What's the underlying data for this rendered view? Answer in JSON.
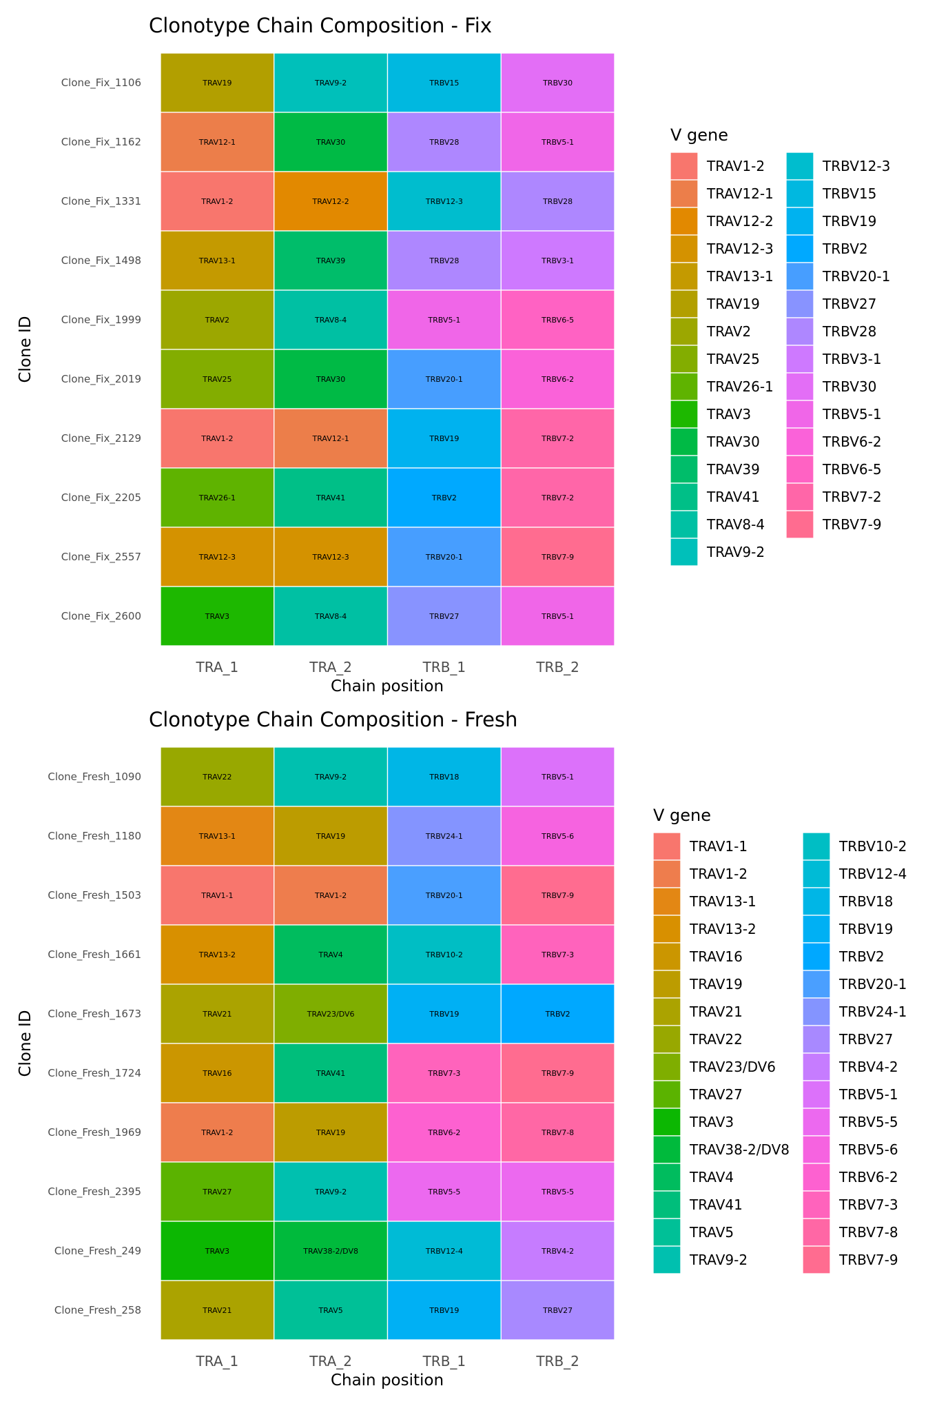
{
  "chart_data": [
    {
      "type": "heatmap",
      "title": "Clonotype Chain Composition - Fix",
      "xlabel": "Chain position",
      "ylabel": "Clone ID",
      "x": [
        "TRA_1",
        "TRA_2",
        "TRB_1",
        "TRB_2"
      ],
      "y": [
        "Clone_Fix_1106",
        "Clone_Fix_1162",
        "Clone_Fix_1331",
        "Clone_Fix_1498",
        "Clone_Fix_1999",
        "Clone_Fix_2019",
        "Clone_Fix_2129",
        "Clone_Fix_2205",
        "Clone_Fix_2557",
        "Clone_Fix_2600"
      ],
      "values": [
        [
          "TRAV19",
          "TRAV9-2",
          "TRBV15",
          "TRBV30"
        ],
        [
          "TRAV12-1",
          "TRAV30",
          "TRBV28",
          "TRBV5-1"
        ],
        [
          "TRAV1-2",
          "TRAV12-2",
          "TRBV12-3",
          "TRBV28"
        ],
        [
          "TRAV13-1",
          "TRAV39",
          "TRBV28",
          "TRBV3-1"
        ],
        [
          "TRAV2",
          "TRAV8-4",
          "TRBV5-1",
          "TRBV6-5"
        ],
        [
          "TRAV25",
          "TRAV30",
          "TRBV20-1",
          "TRBV6-2"
        ],
        [
          "TRAV1-2",
          "TRAV12-1",
          "TRBV19",
          "TRBV7-2"
        ],
        [
          "TRAV26-1",
          "TRAV41",
          "TRBV2",
          "TRBV7-2"
        ],
        [
          "TRAV12-3",
          "TRAV12-3",
          "TRBV20-1",
          "TRBV7-9"
        ],
        [
          "TRAV3",
          "TRAV8-4",
          "TRBV27",
          "TRBV5-1"
        ]
      ],
      "legend": {
        "title": "V gene",
        "position": "right",
        "columns": 2,
        "entries": [
          {
            "label": "TRAV1-2",
            "color": "#F8766D"
          },
          {
            "label": "TRAV12-1",
            "color": "#EC7E4A"
          },
          {
            "label": "TRAV12-2",
            "color": "#E28900"
          },
          {
            "label": "TRAV12-3",
            "color": "#D49200"
          },
          {
            "label": "TRAV13-1",
            "color": "#C49A00"
          },
          {
            "label": "TRAV19",
            "color": "#B29F00"
          },
          {
            "label": "TRAV2",
            "color": "#9CA700"
          },
          {
            "label": "TRAV25",
            "color": "#83AD00"
          },
          {
            "label": "TRAV26-1",
            "color": "#5FB300"
          },
          {
            "label": "TRAV3",
            "color": "#1DB800"
          },
          {
            "label": "TRAV30",
            "color": "#00BA45"
          },
          {
            "label": "TRAV39",
            "color": "#00BD6A"
          },
          {
            "label": "TRAV41",
            "color": "#00BF87"
          },
          {
            "label": "TRAV8-4",
            "color": "#00C0A3"
          },
          {
            "label": "TRAV9-2",
            "color": "#00C0BA"
          },
          {
            "label": "TRBV12-3",
            "color": "#00BDCE"
          },
          {
            "label": "TRBV15",
            "color": "#00B8E0"
          },
          {
            "label": "TRBV19",
            "color": "#00B2EF"
          },
          {
            "label": "TRBV2",
            "color": "#00A9FF"
          },
          {
            "label": "TRBV20-1",
            "color": "#479EFF"
          },
          {
            "label": "TRBV27",
            "color": "#8893FF"
          },
          {
            "label": "TRBV28",
            "color": "#AE87FF"
          },
          {
            "label": "TRBV3-1",
            "color": "#CE79FF"
          },
          {
            "label": "TRBV30",
            "color": "#E36EF6"
          },
          {
            "label": "TRBV5-1",
            "color": "#F066E8"
          },
          {
            "label": "TRBV6-2",
            "color": "#FA62D9"
          },
          {
            "label": "TRBV6-5",
            "color": "#FF62C3"
          },
          {
            "label": "TRBV7-2",
            "color": "#FF66A8"
          },
          {
            "label": "TRBV7-9",
            "color": "#FF6C90"
          }
        ]
      }
    },
    {
      "type": "heatmap",
      "title": "Clonotype Chain Composition - Fresh",
      "xlabel": "Chain position",
      "ylabel": "Clone ID",
      "x": [
        "TRA_1",
        "TRA_2",
        "TRB_1",
        "TRB_2"
      ],
      "y": [
        "Clone_Fresh_1090",
        "Clone_Fresh_1180",
        "Clone_Fresh_1503",
        "Clone_Fresh_1661",
        "Clone_Fresh_1673",
        "Clone_Fresh_1724",
        "Clone_Fresh_1969",
        "Clone_Fresh_2395",
        "Clone_Fresh_249",
        "Clone_Fresh_258"
      ],
      "values": [
        [
          "TRAV22",
          "TRAV9-2",
          "TRBV18",
          "TRBV5-1"
        ],
        [
          "TRAV13-1",
          "TRAV19",
          "TRBV24-1",
          "TRBV5-6"
        ],
        [
          "TRAV1-1",
          "TRAV1-2",
          "TRBV20-1",
          "TRBV7-9"
        ],
        [
          "TRAV13-2",
          "TRAV4",
          "TRBV10-2",
          "TRBV7-3"
        ],
        [
          "TRAV21",
          "TRAV23/DV6",
          "TRBV19",
          "TRBV2"
        ],
        [
          "TRAV16",
          "TRAV41",
          "TRBV7-3",
          "TRBV7-9"
        ],
        [
          "TRAV1-2",
          "TRAV19",
          "TRBV6-2",
          "TRBV7-8"
        ],
        [
          "TRAV27",
          "TRAV9-2",
          "TRBV5-5",
          "TRBV5-5"
        ],
        [
          "TRAV3",
          "TRAV38-2/DV8",
          "TRBV12-4",
          "TRBV4-2"
        ],
        [
          "TRAV21",
          "TRAV5",
          "TRBV19",
          "TRBV27"
        ]
      ],
      "legend": {
        "title": "V gene",
        "position": "right",
        "columns": 2,
        "entries": [
          {
            "label": "TRAV1-1",
            "color": "#F8766D"
          },
          {
            "label": "TRAV1-2",
            "color": "#EE7D4D"
          },
          {
            "label": "TRAV13-1",
            "color": "#E38714"
          },
          {
            "label": "TRAV13-2",
            "color": "#D89000"
          },
          {
            "label": "TRAV16",
            "color": "#CB9600"
          },
          {
            "label": "TRAV19",
            "color": "#BC9C00"
          },
          {
            "label": "TRAV21",
            "color": "#ABA300"
          },
          {
            "label": "TRAV22",
            "color": "#98A800"
          },
          {
            "label": "TRAV23/DV6",
            "color": "#7FAE00"
          },
          {
            "label": "TRAV27",
            "color": "#5BB300"
          },
          {
            "label": "TRAV3",
            "color": "#0CB702"
          },
          {
            "label": "TRAV38-2/DV8",
            "color": "#00BA3C"
          },
          {
            "label": "TRAV4",
            "color": "#00BC5E"
          },
          {
            "label": "TRAV41",
            "color": "#00BE7B"
          },
          {
            "label": "TRAV5",
            "color": "#00C097"
          },
          {
            "label": "TRAV9-2",
            "color": "#00C0AF"
          },
          {
            "label": "TRBV10-2",
            "color": "#00BEC4"
          },
          {
            "label": "TRBV12-4",
            "color": "#00BBD6"
          },
          {
            "label": "TRBV18",
            "color": "#00B6E6"
          },
          {
            "label": "TRBV19",
            "color": "#00B0F4"
          },
          {
            "label": "TRBV2",
            "color": "#00A8FF"
          },
          {
            "label": "TRBV20-1",
            "color": "#4A9FFF"
          },
          {
            "label": "TRBV24-1",
            "color": "#8494FF"
          },
          {
            "label": "TRBV27",
            "color": "#A889FF"
          },
          {
            "label": "TRBV4-2",
            "color": "#C67CFF"
          },
          {
            "label": "TRBV5-1",
            "color": "#DC71FA"
          },
          {
            "label": "TRBV5-5",
            "color": "#EC69EF"
          },
          {
            "label": "TRBV5-6",
            "color": "#F663E0"
          },
          {
            "label": "TRBV6-2",
            "color": "#FD61D0"
          },
          {
            "label": "TRBV7-3",
            "color": "#FF63BC"
          },
          {
            "label": "TRBV7-8",
            "color": "#FF67A5"
          },
          {
            "label": "TRBV7-9",
            "color": "#FF6C90"
          }
        ]
      }
    }
  ]
}
